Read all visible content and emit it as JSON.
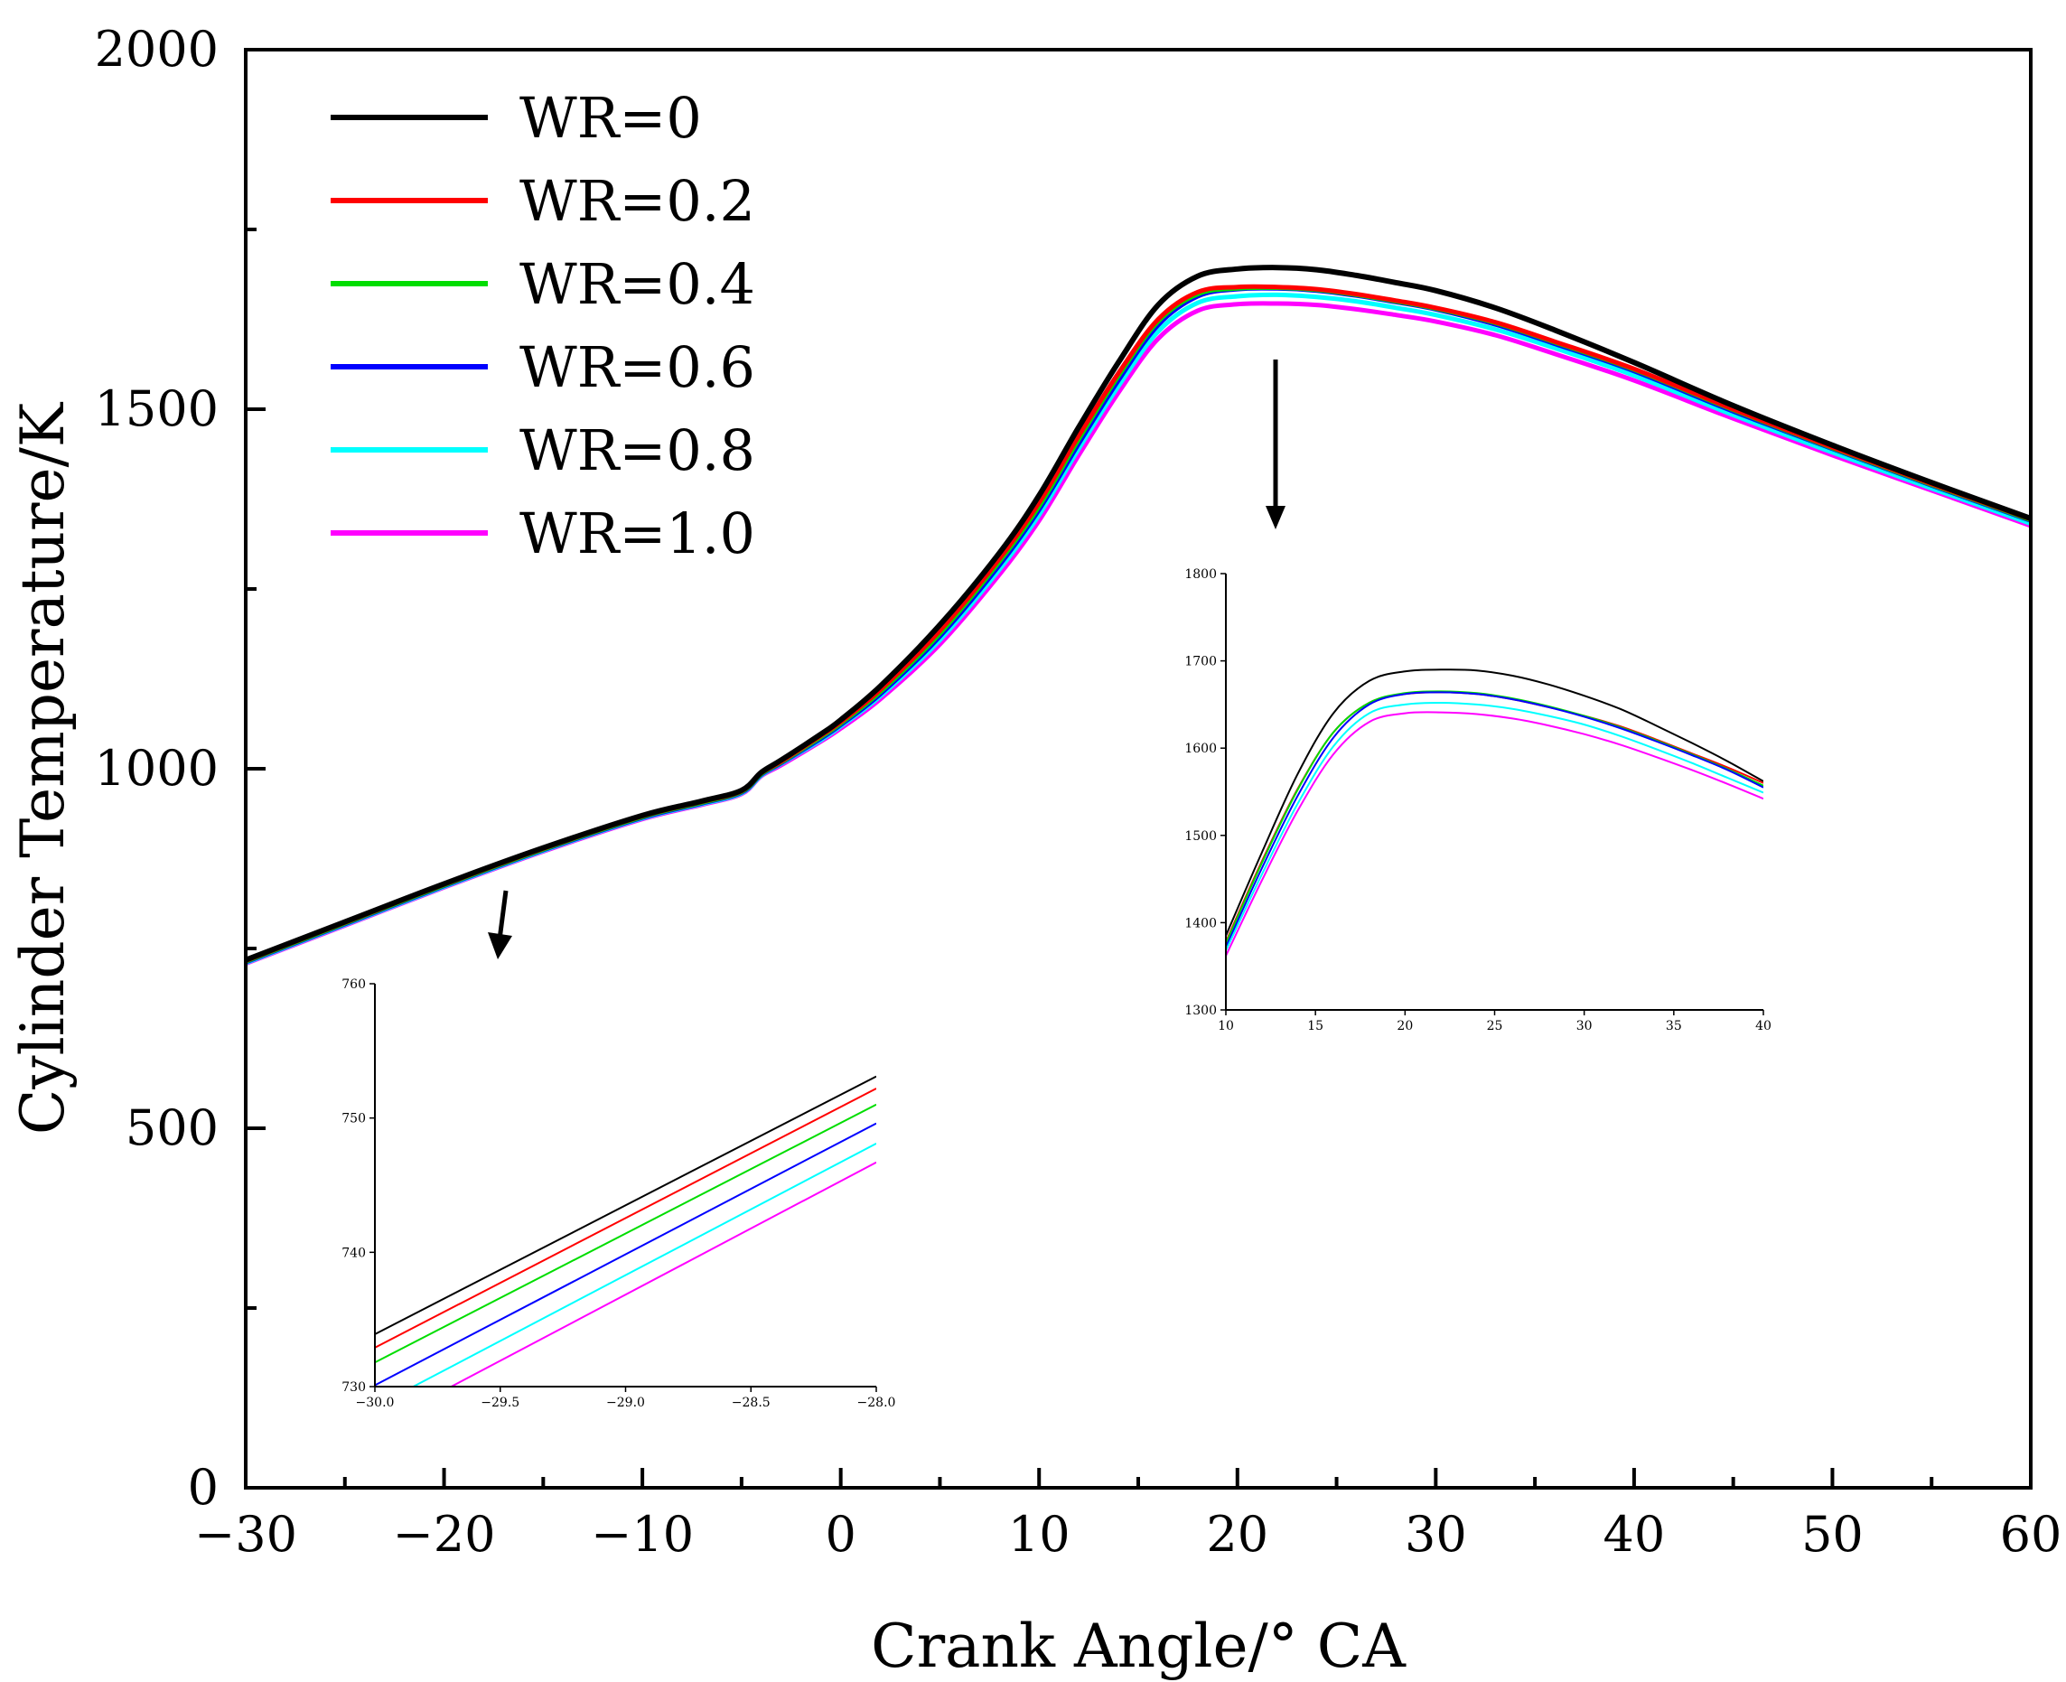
{
  "chart_data": [
    {
      "type": "line",
      "xlabel": "Crank Angle/° CA",
      "ylabel": "Cylinder Temperature/K",
      "xlim": [
        -30,
        60
      ],
      "ylim": [
        0,
        2000
      ],
      "xticks": [
        -30,
        -20,
        -10,
        0,
        10,
        20,
        30,
        40,
        50,
        60
      ],
      "xtick_labels": [
        "−30",
        "−20",
        "−10",
        "0",
        "10",
        "20",
        "30",
        "40",
        "50",
        "60"
      ],
      "yticks": [
        0,
        500,
        1000,
        1500,
        2000
      ],
      "ytick_labels": [
        "0",
        "500",
        "1000",
        "1500",
        "2000"
      ],
      "legend_position": "top-left",
      "x": [
        -30,
        -25,
        -20,
        -15,
        -10,
        -7,
        -5,
        -4,
        -3,
        -1,
        0,
        2,
        5,
        8,
        10,
        12,
        14,
        16,
        18,
        20,
        22,
        24,
        26,
        28,
        30,
        33,
        36,
        40,
        45,
        50,
        55,
        60
      ],
      "series": [
        {
          "name": "WR=0",
          "color": "#000000",
          "values": [
            734,
            787,
            840,
            890,
            935,
            955,
            970,
            995,
            1012,
            1048,
            1068,
            1115,
            1200,
            1300,
            1380,
            1475,
            1565,
            1645,
            1685,
            1695,
            1697,
            1694,
            1686,
            1676,
            1665,
            1641,
            1610,
            1565,
            1505,
            1450,
            1398,
            1348
          ]
        },
        {
          "name": "WR=0.2",
          "color": "#ff0000",
          "values": [
            733,
            786,
            839,
            889,
            934,
            954,
            969,
            994,
            1010,
            1046,
            1065,
            1110,
            1192,
            1292,
            1370,
            1463,
            1550,
            1625,
            1663,
            1670,
            1670,
            1667,
            1660,
            1651,
            1641,
            1621,
            1594,
            1556,
            1500,
            1447,
            1396,
            1347
          ]
        },
        {
          "name": "WR=0.4",
          "color": "#00dd00",
          "values": [
            732,
            785,
            838,
            888,
            933,
            953,
            968,
            993,
            1009,
            1044,
            1063,
            1107,
            1188,
            1288,
            1365,
            1458,
            1546,
            1622,
            1660,
            1668,
            1669,
            1666,
            1659,
            1650,
            1640,
            1620,
            1593,
            1555,
            1499,
            1446,
            1395,
            1346
          ]
        },
        {
          "name": "WR=0.6",
          "color": "#0000ff",
          "values": [
            731,
            784,
            837,
            887,
            932,
            952,
            967,
            992,
            1008,
            1042,
            1061,
            1104,
            1184,
            1283,
            1360,
            1452,
            1540,
            1617,
            1657,
            1667,
            1668,
            1665,
            1658,
            1649,
            1639,
            1618,
            1591,
            1553,
            1497,
            1445,
            1394,
            1345
          ]
        },
        {
          "name": "WR=0.8",
          "color": "#00ffff",
          "values": [
            730,
            783,
            836,
            886,
            931,
            951,
            966,
            991,
            1007,
            1040,
            1059,
            1101,
            1179,
            1277,
            1353,
            1445,
            1532,
            1608,
            1648,
            1657,
            1659,
            1656,
            1650,
            1641,
            1631,
            1611,
            1585,
            1547,
            1492,
            1440,
            1390,
            1341
          ]
        },
        {
          "name": "WR=1.0",
          "color": "#ff00ff",
          "values": [
            729,
            782,
            835,
            885,
            930,
            950,
            965,
            990,
            1005,
            1038,
            1056,
            1097,
            1173,
            1270,
            1345,
            1436,
            1523,
            1598,
            1637,
            1646,
            1647,
            1645,
            1639,
            1631,
            1622,
            1603,
            1577,
            1540,
            1487,
            1436,
            1387,
            1338
          ]
        }
      ]
    },
    {
      "type": "line",
      "xlim": [
        -30,
        -28
      ],
      "ylim": [
        730,
        760
      ],
      "xticks": [
        -30,
        -29.5,
        -29,
        -28.5,
        -28
      ],
      "xtick_labels": [
        "−30.0",
        "−29.5",
        "−29.0",
        "−28.5",
        "−28.0"
      ],
      "yticks": [
        730,
        740,
        750,
        760
      ],
      "ytick_labels": [
        "730",
        "740",
        "750",
        "760"
      ],
      "x": [
        -30,
        -28
      ],
      "series": [
        {
          "color": "#000000",
          "values": [
            733.9,
            753.1
          ]
        },
        {
          "color": "#ff0000",
          "values": [
            732.9,
            752.2
          ]
        },
        {
          "color": "#00dd00",
          "values": [
            731.8,
            751.0
          ]
        },
        {
          "color": "#0000ff",
          "values": [
            730.1,
            749.6
          ]
        },
        {
          "color": "#00ffff",
          "values": [
            728.5,
            748.1
          ]
        },
        {
          "color": "#ff00ff",
          "values": [
            727.0,
            746.7
          ]
        }
      ]
    },
    {
      "type": "line",
      "xlim": [
        10,
        40
      ],
      "ylim": [
        1300,
        1800
      ],
      "xticks": [
        10,
        15,
        20,
        25,
        30,
        35,
        40
      ],
      "xtick_labels": [
        "10",
        "15",
        "20",
        "25",
        "30",
        "35",
        "40"
      ],
      "yticks": [
        1300,
        1400,
        1500,
        1600,
        1700,
        1800
      ],
      "ytick_labels": [
        "1300",
        "1400",
        "1500",
        "1600",
        "1700",
        "1800"
      ],
      "x": [
        10,
        12,
        14,
        16,
        18,
        20,
        22,
        24,
        26,
        28,
        30,
        32,
        34,
        36,
        38,
        40
      ],
      "series": [
        {
          "color": "#000000",
          "values": [
            1385,
            1480,
            1570,
            1640,
            1677,
            1688,
            1690,
            1689,
            1683,
            1673,
            1660,
            1645,
            1626,
            1606,
            1585,
            1562
          ]
        },
        {
          "color": "#ff0000",
          "values": [
            1378,
            1470,
            1553,
            1618,
            1652,
            1662,
            1664,
            1662,
            1656,
            1647,
            1637,
            1625,
            1610,
            1594,
            1578,
            1560
          ]
        },
        {
          "color": "#00dd00",
          "values": [
            1376,
            1468,
            1552,
            1618,
            1652,
            1663,
            1665,
            1663,
            1657,
            1648,
            1637,
            1624,
            1609,
            1593,
            1576,
            1557
          ]
        },
        {
          "color": "#0000ff",
          "values": [
            1372,
            1462,
            1545,
            1612,
            1650,
            1662,
            1664,
            1662,
            1656,
            1647,
            1636,
            1623,
            1608,
            1592,
            1575,
            1555
          ]
        },
        {
          "color": "#00ffff",
          "values": [
            1368,
            1455,
            1536,
            1602,
            1640,
            1650,
            1652,
            1650,
            1645,
            1637,
            1627,
            1614,
            1599,
            1583,
            1566,
            1549
          ]
        },
        {
          "color": "#ff00ff",
          "values": [
            1362,
            1448,
            1528,
            1593,
            1630,
            1640,
            1641,
            1639,
            1634,
            1626,
            1616,
            1604,
            1590,
            1575,
            1559,
            1542
          ]
        }
      ]
    }
  ]
}
